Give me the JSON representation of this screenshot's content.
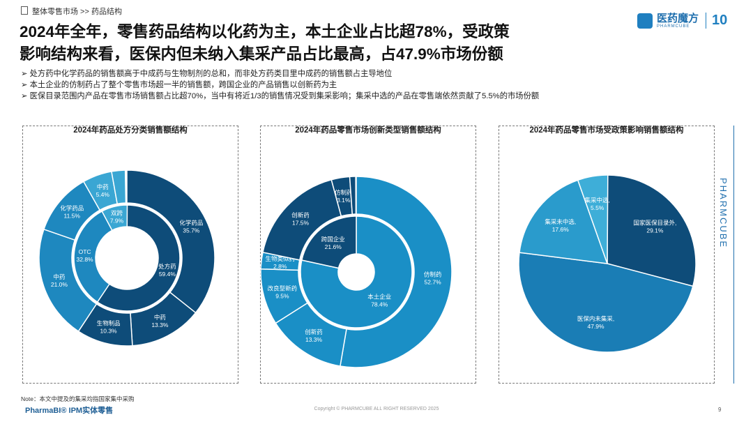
{
  "header": {
    "breadcrumb": "整体零售市场 >> 药品结构",
    "title_lines": [
      "2024年全年，零售药品结构以化药为主，本土企业占比超78%，受政策",
      "影响结构来看，医保内但未纳入集采产品占比最高，占47.9%市场份额"
    ],
    "logo": "医药魔方",
    "logo_sub": "PHARMCUBE",
    "anniversary": "10"
  },
  "bullets": [
    "处方药中化学药品的销售额高于中成药与生物制剂的总和，而非处方药类目里中成药的销售额占主导地位",
    "本土企业的仿制药占了整个零售市场超一半的销售额，跨国企业的产品销售以创新药为主",
    "医保目录范围内产品在零售市场销售额占比超70%，当中有将近1/3的销售情况受到集采影响；集采中选的产品在零售端依然贡献了5.5%的市场份额"
  ],
  "chart_data": [
    {
      "type": "donut",
      "title": "2024年药品处方分类销售额结构",
      "rings": [
        {
          "categories": [
            "处方药",
            "OTC",
            "双跨"
          ],
          "values": [
            59.4,
            32.8,
            7.9
          ],
          "value_labels": [
            "59.4%",
            "32.8%",
            "7.9%"
          ],
          "colors": [
            "#0e4c79",
            "#1e88bf",
            "#3aa6d3"
          ]
        },
        {
          "categories": [
            "化学药品",
            "中药",
            "生物制品",
            "中药",
            "化学药品",
            "中药",
            null
          ],
          "values": [
            35.7,
            13.3,
            10.3,
            21.0,
            11.5,
            5.4,
            2.5
          ],
          "value_labels": [
            "35.7%",
            "13.3%",
            "10.3%",
            "21.0%",
            "11.5%",
            "5.4%",
            null
          ],
          "colors": [
            "#0e4c79",
            "#0e4c79",
            "#0e4c79",
            "#1e88bf",
            "#1e88bf",
            "#3aa6d3",
            "#3aa6d3"
          ]
        }
      ]
    },
    {
      "type": "donut",
      "title": "2024年药品零售市场创新类型销售额结构",
      "rings": [
        {
          "categories": [
            "本土企业",
            "跨国企业"
          ],
          "values": [
            78.4,
            21.6
          ],
          "value_labels": [
            "78.4%",
            "21.6%"
          ],
          "colors": [
            "#1a8fc6",
            "#0e4c79"
          ]
        },
        {
          "categories": [
            "仿制药",
            "创新药",
            "改良型新药",
            "生物类似药",
            "创新药",
            "仿制药",
            null
          ],
          "values": [
            52.7,
            13.3,
            9.5,
            2.8,
            17.5,
            3.1,
            1.0
          ],
          "value_labels": [
            "52.7%",
            "13.3%",
            "9.5%",
            "2.8%",
            "17.5%",
            "3.1%",
            null
          ],
          "colors": [
            "#1a8fc6",
            "#1a8fc6",
            "#1a8fc6",
            "#1a8fc6",
            "#0e4c79",
            "#0e4c79",
            "#0e4c79"
          ]
        }
      ]
    },
    {
      "type": "pie",
      "title": "2024年药品零售市场受政策影响销售额结构",
      "categories": [
        "国家医保目录外,",
        "医保内未集采,",
        "集采未中选,",
        "集采中选,"
      ],
      "values": [
        29.1,
        47.9,
        17.6,
        5.5
      ],
      "value_labels": [
        "29.1%",
        "47.9%",
        "17.6%",
        "5.5%"
      ],
      "colors": [
        "#0e4c79",
        "#1a7db5",
        "#2a9bcc",
        "#3eaed8"
      ]
    }
  ],
  "footer": {
    "note": "Note：本文中提及的集采均指国家集中采购",
    "brand": "PharmaBI® IPM实体零售",
    "copyright": "Copyright © PHARMCUBE ALL RIGHT RESERVED 2025",
    "page": "9",
    "side": "PHARMCUBE"
  }
}
